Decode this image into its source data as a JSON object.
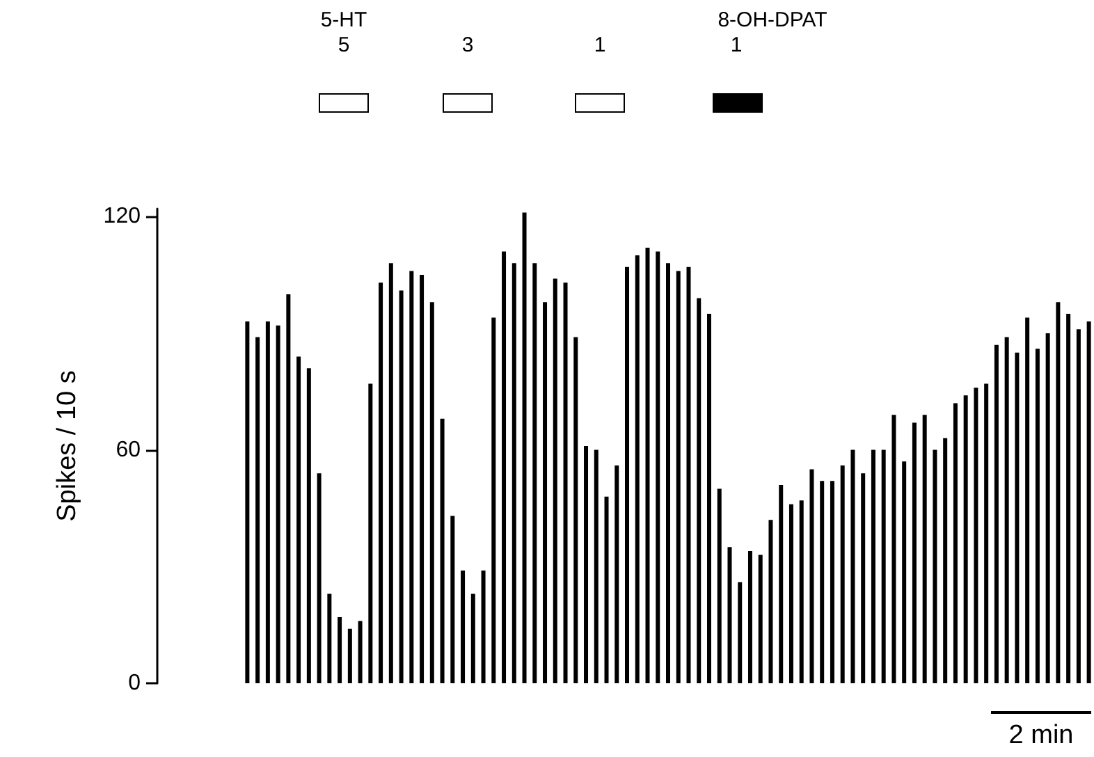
{
  "chart_data": {
    "type": "bar",
    "ylabel": "Spikes / 10 s",
    "ylim": [
      0,
      122
    ],
    "yticks": [
      0,
      60,
      120
    ],
    "grid": false,
    "tick_labels": "y",
    "color": "#000000",
    "categories": [
      null,
      null,
      null,
      null,
      null,
      null,
      null,
      null,
      null,
      null,
      null,
      null,
      null,
      null,
      null,
      null,
      null,
      null,
      null,
      null,
      null,
      null,
      null,
      null,
      null,
      null,
      null,
      null,
      null,
      null,
      null,
      null,
      null,
      null,
      null,
      null,
      null,
      null,
      null,
      null,
      null,
      null,
      null,
      null,
      null,
      null,
      null,
      null,
      null,
      null,
      null,
      null,
      null,
      null,
      null,
      null,
      null,
      null,
      null,
      null,
      null,
      null,
      null,
      null,
      null,
      null,
      null,
      null,
      null,
      null,
      null,
      null,
      null,
      null,
      null,
      null,
      null,
      null,
      null,
      null,
      null,
      null,
      null
    ],
    "values": [
      93,
      89,
      93,
      92,
      100,
      84,
      81,
      54,
      23,
      17,
      14,
      16,
      77,
      103,
      108,
      101,
      106,
      105,
      98,
      68,
      43,
      29,
      23,
      29,
      94,
      111,
      108,
      121,
      108,
      98,
      104,
      103,
      89,
      61,
      60,
      48,
      56,
      107,
      110,
      112,
      111,
      108,
      106,
      107,
      99,
      95,
      50,
      35,
      26,
      34,
      33,
      42,
      51,
      46,
      47,
      55,
      52,
      52,
      56,
      60,
      54,
      60,
      60,
      69,
      57,
      67,
      69,
      60,
      63,
      72,
      74,
      76,
      77,
      87,
      89,
      85,
      94,
      86,
      90,
      98,
      95,
      91,
      93
    ],
    "annotations": [
      "5-HT",
      "5",
      "3",
      "1",
      "8-OH-DPAT",
      "1",
      "2 min"
    ]
  }
}
